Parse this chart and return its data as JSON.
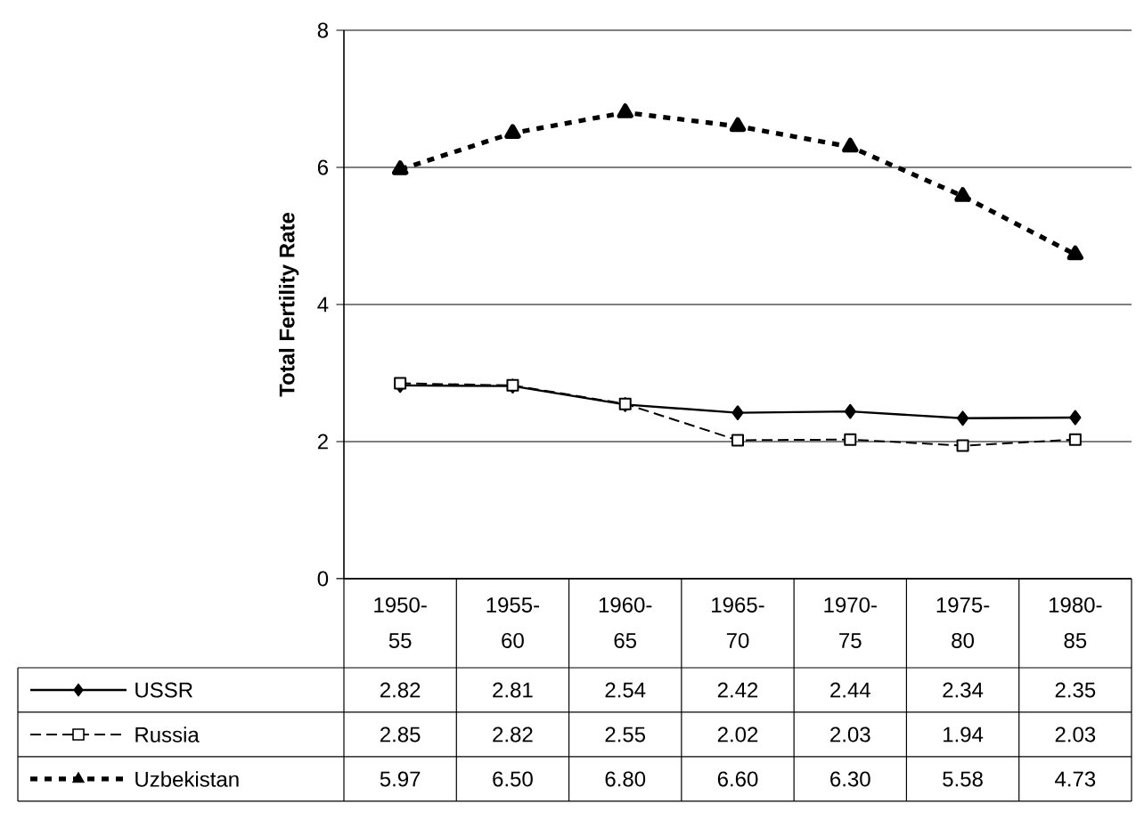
{
  "chart_data": {
    "type": "line",
    "ylabel": "Total Fertility Rate",
    "categories": [
      "1950-55",
      "1955-60",
      "1960-65",
      "1965-70",
      "1970-75",
      "1975-80",
      "1980-85"
    ],
    "series": [
      {
        "name": "USSR",
        "color": "#000000",
        "marker": "diamond",
        "line_style": "solid",
        "values": [
          2.82,
          2.81,
          2.54,
          2.42,
          2.44,
          2.34,
          2.35
        ],
        "value_labels": [
          "2.82",
          "2.81",
          "2.54",
          "2.42",
          "2.44",
          "2.34",
          "2.35"
        ]
      },
      {
        "name": "Russia",
        "color": "#000000",
        "marker": "square",
        "line_style": "dashed",
        "values": [
          2.85,
          2.82,
          2.55,
          2.02,
          2.03,
          1.94,
          2.03
        ],
        "value_labels": [
          "2.85",
          "2.82",
          "2.55",
          "2.02",
          "2.03",
          "1.94",
          "2.03"
        ]
      },
      {
        "name": "Uzbekistan",
        "color": "#000000",
        "marker": "triangle",
        "line_style": "dotted",
        "values": [
          5.97,
          6.5,
          6.8,
          6.6,
          6.3,
          5.58,
          4.73
        ],
        "value_labels": [
          "5.97",
          "6.50",
          "6.80",
          "6.60",
          "6.30",
          "5.58",
          "4.73"
        ]
      }
    ],
    "ylim": [
      0,
      8
    ],
    "yticks": [
      0,
      2,
      4,
      6,
      8
    ],
    "grid": "y",
    "legend": "bottom"
  }
}
